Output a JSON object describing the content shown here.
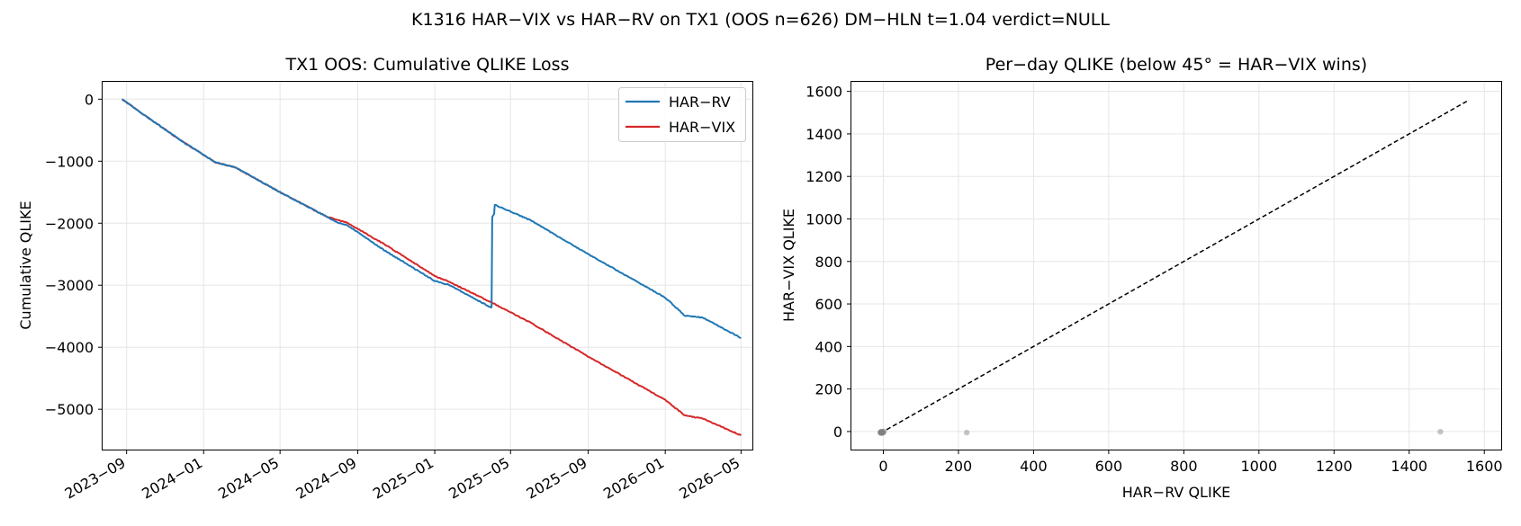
{
  "figure": {
    "suptitle": "K1316 HAR−VIX vs HAR−RV on TX1 (OOS n=626)  DM−HLN t=1.04  verdict=NULL"
  },
  "colors": {
    "har_rv": "#1f77b4",
    "har_vix": "#d62728",
    "scatter": "#808080",
    "diagonal": "#000000",
    "grid": "#e6e6e6"
  },
  "chart_data": [
    {
      "type": "line",
      "title": "TX1 OOS: Cumulative QLIKE Loss",
      "xlabel": "",
      "ylabel": "Cumulative QLIKE",
      "x_ticks": [
        "2023−09",
        "2024−01",
        "2024−05",
        "2024−09",
        "2025−01",
        "2025−05",
        "2025−09",
        "2026−01",
        "2026−05"
      ],
      "ylim": [
        -5650,
        280
      ],
      "y_ticks": [
        0,
        -1000,
        -2000,
        -3000,
        -4000,
        -5000
      ],
      "y_tick_labels": [
        "0",
        "−1000",
        "−2000",
        "−3000",
        "−4000",
        "−5000"
      ],
      "grid": true,
      "legend": "top-right",
      "series": [
        {
          "name": "HAR−RV",
          "color_key": "har_rv",
          "points": [
            [
              "2023-08-25",
              0
            ],
            [
              "2023-10-01",
              -270
            ],
            [
              "2023-12-01",
              -700
            ],
            [
              "2024-01-20",
              -1020
            ],
            [
              "2024-02-20",
              -1100
            ],
            [
              "2024-05-01",
              -1500
            ],
            [
              "2024-07-15",
              -1900
            ],
            [
              "2024-08-01",
              -1990
            ],
            [
              "2024-08-15",
              -2030
            ],
            [
              "2024-10-15",
              -2450
            ],
            [
              "2025-01-01",
              -2930
            ],
            [
              "2025-01-25",
              -3000
            ],
            [
              "2025-03-31",
              -3360
            ],
            [
              "2025-04-01",
              -3350
            ],
            [
              "2025-04-02",
              -1900
            ],
            [
              "2025-04-05",
              -1850
            ],
            [
              "2025-04-06",
              -1700
            ],
            [
              "2025-06-01",
              -1950
            ],
            [
              "2025-09-01",
              -2500
            ],
            [
              "2026-01-01",
              -3200
            ],
            [
              "2026-02-01",
              -3490
            ],
            [
              "2026-03-01",
              -3520
            ],
            [
              "2026-05-01",
              -3850
            ]
          ]
        },
        {
          "name": "HAR−VIX",
          "color_key": "har_vix",
          "points": [
            [
              "2023-08-25",
              0
            ],
            [
              "2023-10-01",
              -270
            ],
            [
              "2023-12-01",
              -700
            ],
            [
              "2024-01-20",
              -1020
            ],
            [
              "2024-02-20",
              -1100
            ],
            [
              "2024-05-01",
              -1500
            ],
            [
              "2024-07-15",
              -1900
            ],
            [
              "2024-08-15",
              -1990
            ],
            [
              "2024-10-15",
              -2350
            ],
            [
              "2025-01-01",
              -2850
            ],
            [
              "2025-01-25",
              -2950
            ],
            [
              "2025-04-01",
              -3280
            ],
            [
              "2025-06-01",
              -3600
            ],
            [
              "2025-09-01",
              -4150
            ],
            [
              "2026-01-01",
              -4850
            ],
            [
              "2026-02-01",
              -5100
            ],
            [
              "2026-03-01",
              -5150
            ],
            [
              "2026-05-01",
              -5420
            ]
          ]
        }
      ]
    },
    {
      "type": "scatter",
      "title": "Per−day QLIKE (below 45° = HAR−VIX wins)",
      "xlabel": "HAR−RV QLIKE",
      "ylabel": "HAR−VIX QLIKE",
      "xlim": [
        -85,
        1645
      ],
      "ylim": [
        -85,
        1645
      ],
      "x_ticks": [
        0,
        200,
        400,
        600,
        800,
        1000,
        1200,
        1400,
        1600
      ],
      "y_ticks": [
        0,
        200,
        400,
        600,
        800,
        1000,
        1200,
        1400,
        1600
      ],
      "grid": true,
      "diagonal": [
        [
          -8,
          -8
        ],
        [
          1560,
          1560
        ]
      ],
      "points": [
        [
          -6,
          -6
        ],
        [
          -5,
          -7
        ],
        [
          -4,
          -4
        ],
        [
          -7,
          -3
        ],
        [
          -3,
          -5
        ],
        [
          -5,
          -5
        ],
        [
          -2,
          -6
        ],
        [
          -6,
          -2
        ],
        [
          -4,
          -6
        ],
        [
          -3,
          -3
        ],
        [
          -7,
          -6
        ],
        [
          -1,
          -4
        ],
        [
          2,
          1
        ],
        [
          -5,
          0
        ],
        [
          -8,
          -5
        ],
        [
          -2,
          -2
        ],
        [
          0,
          -5
        ],
        [
          -6,
          -4
        ],
        [
          222,
          -5
        ],
        [
          1483,
          -1
        ]
      ]
    }
  ]
}
